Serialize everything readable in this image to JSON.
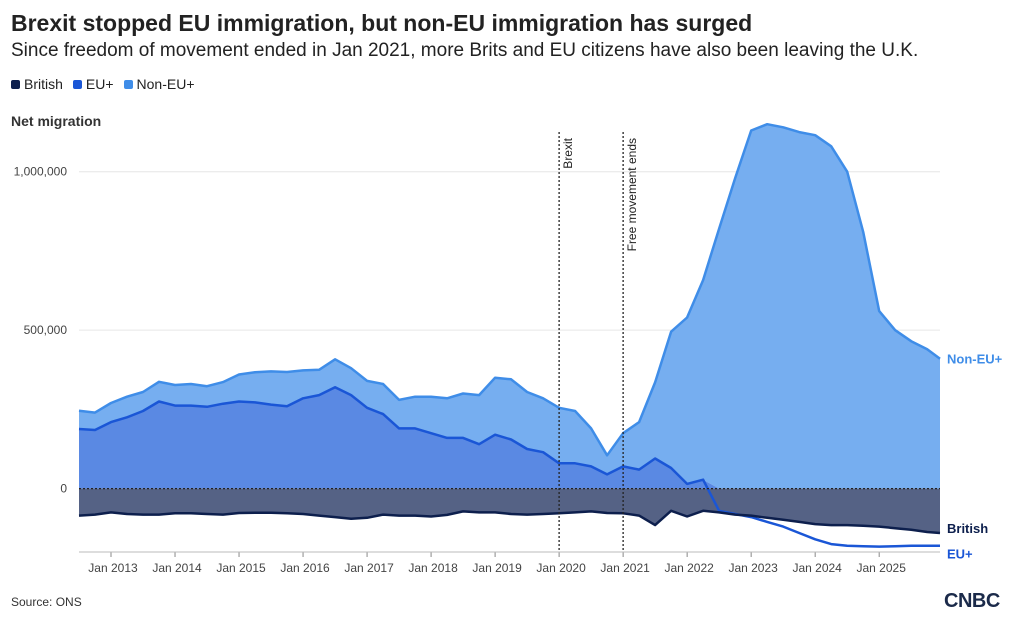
{
  "header": {
    "title": "Brexit stopped EU immigration, but non-EU immigration has surged",
    "subtitle": "Since freedom of movement ended in Jan 2021, more Brits and EU citizens have also been leaving the U.K."
  },
  "source": "Source: ONS",
  "logo": "CNBC",
  "chart_data": {
    "type": "area",
    "ylabel": "Net migration",
    "ylim": [
      -200000,
      1100000
    ],
    "yticks": [
      0,
      500000,
      1000000
    ],
    "ytick_labels": [
      "0",
      "500,000",
      "1,000,000"
    ],
    "xlim": [
      2012.5,
      2025.95
    ],
    "xticks": [
      2013,
      2014,
      2015,
      2016,
      2017,
      2018,
      2019,
      2020,
      2021,
      2022,
      2023,
      2024,
      2025
    ],
    "xtick_labels": [
      "Jan 2013",
      "Jan 2014",
      "Jan 2015",
      "Jan 2016",
      "Jan 2017",
      "Jan 2018",
      "Jan 2019",
      "Jan 2020",
      "Jan 2021",
      "Jan 2022",
      "Jan 2023",
      "Jan 2024",
      "Jan 2025"
    ],
    "grid": true,
    "legend_position": "top-left",
    "annotations": [
      {
        "x": 2020.0,
        "label": "Brexit"
      },
      {
        "x": 2021.0,
        "label": "Free movement ends"
      }
    ],
    "x": [
      2012.5,
      2012.75,
      2013.0,
      2013.25,
      2013.5,
      2013.75,
      2014.0,
      2014.25,
      2014.5,
      2014.75,
      2015.0,
      2015.25,
      2015.5,
      2015.75,
      2016.0,
      2016.25,
      2016.5,
      2016.75,
      2017.0,
      2017.25,
      2017.5,
      2017.75,
      2018.0,
      2018.25,
      2018.5,
      2018.75,
      2019.0,
      2019.25,
      2019.5,
      2019.75,
      2020.0,
      2020.25,
      2020.5,
      2020.75,
      2021.0,
      2021.25,
      2021.5,
      2021.75,
      2022.0,
      2022.25,
      2022.5,
      2022.75,
      2023.0,
      2023.25,
      2023.5,
      2023.75,
      2024.0,
      2024.25,
      2024.5,
      2024.75,
      2025.0,
      2025.25,
      2025.5,
      2025.75,
      2025.95
    ],
    "series": [
      {
        "name": "British",
        "color": "#0d1f4d",
        "values": [
          -85000,
          -82000,
          -75000,
          -80000,
          -82000,
          -82000,
          -78000,
          -78000,
          -80000,
          -82000,
          -77000,
          -76000,
          -76000,
          -78000,
          -80000,
          -85000,
          -90000,
          -95000,
          -92000,
          -82000,
          -85000,
          -85000,
          -88000,
          -83000,
          -72000,
          -75000,
          -75000,
          -80000,
          -82000,
          -80000,
          -78000,
          -75000,
          -72000,
          -77000,
          -78000,
          -85000,
          -115000,
          -70000,
          -88000,
          -70000,
          -75000,
          -82000,
          -85000,
          -92000,
          -98000,
          -105000,
          -112000,
          -115000,
          -115000,
          -117000,
          -120000,
          -125000,
          -130000,
          -137000,
          -140000
        ]
      },
      {
        "name": "EU+",
        "color": "#1a56d6",
        "values": [
          188000,
          185000,
          210000,
          225000,
          245000,
          275000,
          262000,
          262000,
          258000,
          268000,
          275000,
          272000,
          265000,
          260000,
          285000,
          295000,
          320000,
          295000,
          255000,
          235000,
          190000,
          190000,
          175000,
          160000,
          160000,
          140000,
          170000,
          155000,
          125000,
          115000,
          80000,
          80000,
          70000,
          45000,
          70000,
          60000,
          95000,
          65000,
          15000,
          28000,
          -70000,
          -80000,
          -90000,
          -105000,
          -120000,
          -140000,
          -160000,
          -175000,
          -180000,
          -182000,
          -183000,
          -182000,
          -180000,
          -180000,
          -180000
        ]
      },
      {
        "name": "Non-EU+",
        "color": "#3f8de8",
        "values": [
          58000,
          55000,
          60000,
          65000,
          60000,
          62000,
          65000,
          68000,
          65000,
          68000,
          85000,
          95000,
          105000,
          108000,
          88000,
          80000,
          88000,
          85000,
          85000,
          95000,
          90000,
          100000,
          115000,
          125000,
          140000,
          155000,
          180000,
          190000,
          180000,
          170000,
          175000,
          165000,
          120000,
          60000,
          105000,
          150000,
          240000,
          430000,
          525000,
          630000,
          820000,
          980000,
          1130000,
          1150000,
          1140000,
          1125000,
          1115000,
          1080000,
          1000000,
          810000,
          560000,
          500000,
          465000,
          440000,
          410000
        ]
      }
    ],
    "end_labels": [
      {
        "series": "Non-EU+",
        "label": "Non-EU+"
      },
      {
        "series": "British",
        "label": "British"
      },
      {
        "series": "EU+",
        "label": "EU+"
      }
    ]
  }
}
